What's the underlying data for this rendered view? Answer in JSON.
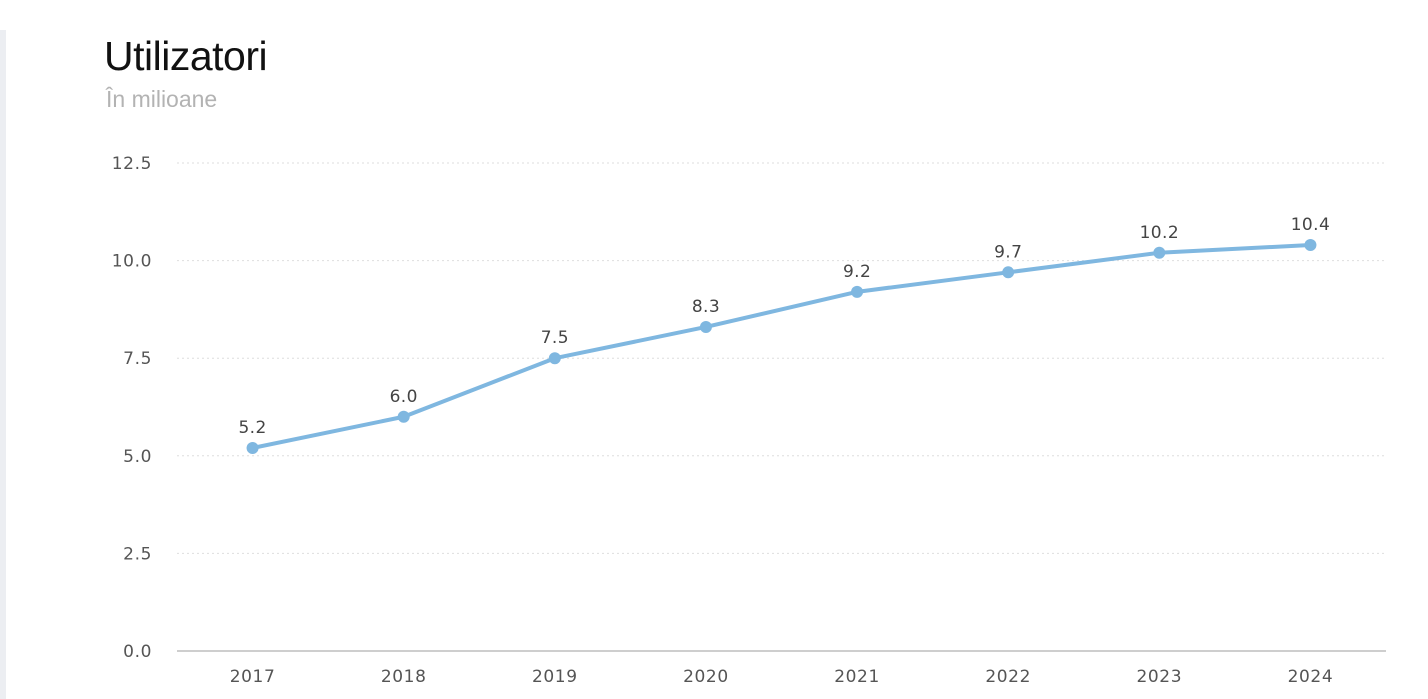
{
  "chart_data": {
    "type": "line",
    "title": "Utilizatori",
    "subtitle": "În milioane",
    "xlabel": "",
    "ylabel": "",
    "categories": [
      "2017",
      "2018",
      "2019",
      "2020",
      "2021",
      "2022",
      "2023",
      "2024"
    ],
    "series": [
      {
        "values": [
          5.2,
          6.0,
          7.5,
          8.3,
          9.2,
          9.7,
          10.2,
          10.4
        ],
        "labels": [
          "5.2",
          "6.0",
          "7.5",
          "8.3",
          "9.2",
          "9.7",
          "10.2",
          "10.4"
        ],
        "color": "#7fb7e0"
      }
    ],
    "ylim": [
      0,
      12.5
    ],
    "yticks": [
      "0.0",
      "2.5",
      "5.0",
      "7.5",
      "10.0",
      "12.5"
    ],
    "grid": true,
    "legend": "none"
  }
}
